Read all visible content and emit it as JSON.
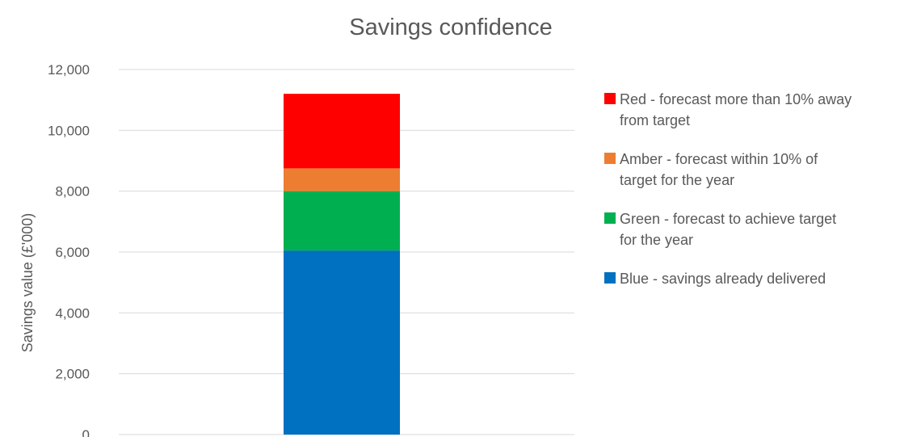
{
  "chart_data": {
    "type": "bar",
    "stacked": true,
    "title": "Savings confidence",
    "xlabel": "",
    "ylabel": "Savings value (£'000)",
    "ylim": [
      0,
      12000
    ],
    "yticks": [
      0,
      2000,
      4000,
      6000,
      8000,
      10000,
      12000
    ],
    "ytick_labels": [
      "0",
      "2,000",
      "4,000",
      "6,000",
      "8,000",
      "10,000",
      "12,000"
    ],
    "grid": true,
    "legend_position": "right",
    "categories": [
      ""
    ],
    "series": [
      {
        "name": "Blue - savings already delivered",
        "color": "#0070c0",
        "values": [
          6050
        ]
      },
      {
        "name": "Green - forecast to achieve target for the year",
        "color": "#00b050",
        "values": [
          1950
        ]
      },
      {
        "name": "Amber - forecast within 10% of target for the year",
        "color": "#ed7d31",
        "values": [
          750
        ]
      },
      {
        "name": "Red - forecast more than 10% away from target",
        "color": "#ff0000",
        "values": [
          2450
        ]
      }
    ],
    "legend": [
      {
        "lines": [
          "Red - forecast more than 10% away",
          "from target"
        ],
        "color": "#ff0000"
      },
      {
        "lines": [
          "Amber - forecast within 10% of",
          "target for the year"
        ],
        "color": "#ed7d31"
      },
      {
        "lines": [
          "Green - forecast to achieve target",
          "for the year"
        ],
        "color": "#00b050"
      },
      {
        "lines": [
          "Blue - savings already delivered"
        ],
        "color": "#0070c0"
      }
    ],
    "gridline_color": "#d9d9d9"
  }
}
